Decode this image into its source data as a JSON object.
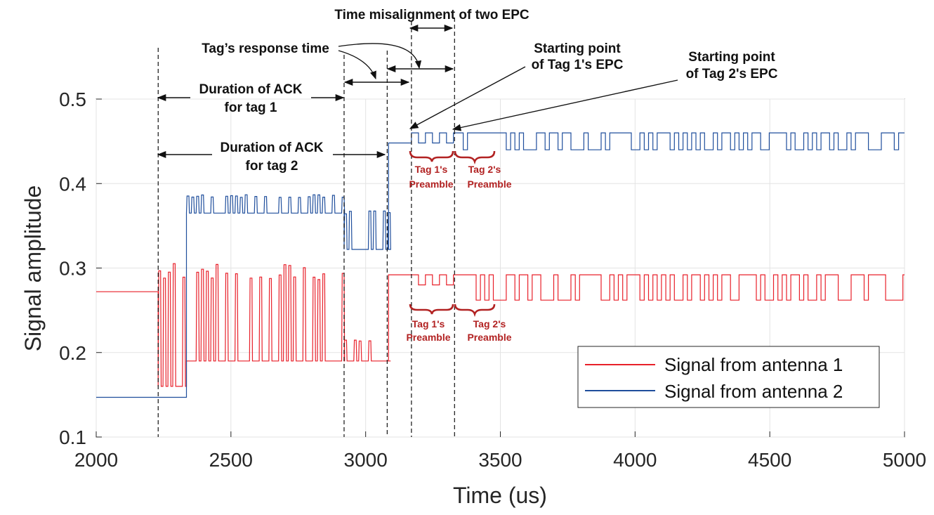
{
  "chart_data": {
    "type": "line",
    "title": "",
    "xlabel": "Time (us)",
    "ylabel": "Signal amplitude",
    "xlim": [
      2000,
      5000
    ],
    "ylim": [
      0.1,
      0.5
    ],
    "xticks": [
      "2000",
      "2500",
      "3000",
      "3500",
      "4000",
      "4500",
      "5000"
    ],
    "yticks": [
      "0.1",
      "0.2",
      "0.3",
      "0.4",
      "0.5"
    ],
    "grid": true,
    "legend_position": "bottom-right",
    "series": [
      {
        "name": "Signal from antenna 1",
        "color": "#e8202a",
        "segments": [
          {
            "from": 2000,
            "to": 2230,
            "kind": "flat",
            "level": 0.272
          },
          {
            "from": 2230,
            "to": 2335,
            "kind": "burst",
            "low": 0.16,
            "high": 0.295
          },
          {
            "from": 2335,
            "to": 2920,
            "kind": "burst",
            "low": 0.19,
            "high": 0.295
          },
          {
            "from": 2920,
            "to": 3085,
            "kind": "burst",
            "low": 0.19,
            "high": 0.215
          },
          {
            "from": 3085,
            "to": 3170,
            "kind": "flat",
            "level": 0.292
          },
          {
            "from": 3170,
            "to": 3330,
            "kind": "preamble",
            "low": 0.28,
            "high": 0.292
          },
          {
            "from": 3330,
            "to": 5000,
            "kind": "square",
            "low": 0.262,
            "high": 0.292
          }
        ]
      },
      {
        "name": "Signal from antenna 2",
        "color": "#1f4e9c",
        "segments": [
          {
            "from": 2000,
            "to": 2230,
            "kind": "flat",
            "level": 0.147
          },
          {
            "from": 2230,
            "to": 2335,
            "kind": "flat",
            "level": 0.147
          },
          {
            "from": 2335,
            "to": 2920,
            "kind": "burst",
            "low": 0.365,
            "high": 0.385
          },
          {
            "from": 2920,
            "to": 3085,
            "kind": "burst",
            "low": 0.322,
            "high": 0.368
          },
          {
            "from": 3085,
            "to": 3170,
            "kind": "flat",
            "level": 0.448
          },
          {
            "from": 3170,
            "to": 3330,
            "kind": "preamble",
            "low": 0.448,
            "high": 0.46
          },
          {
            "from": 3330,
            "to": 5000,
            "kind": "square",
            "low": 0.44,
            "high": 0.46
          }
        ]
      }
    ],
    "markers_x": [
      2230,
      2920,
      3080,
      3170,
      3330
    ],
    "annotations": {
      "misalignment": "Time misalignment of two EPC",
      "response_time": "Tag’s response time",
      "start1": [
        "Starting point",
        "of Tag 1's EPC"
      ],
      "start2": [
        "Starting point",
        "of Tag 2's EPC"
      ],
      "ack1": [
        "Duration of ACK",
        "for tag 1"
      ],
      "ack2": [
        "Duration of ACK",
        "for tag 2"
      ],
      "tag1_preamble": [
        "Tag 1's",
        "Preamble"
      ],
      "tag2_preamble": [
        "Tag 2's",
        "Preamble"
      ]
    }
  }
}
